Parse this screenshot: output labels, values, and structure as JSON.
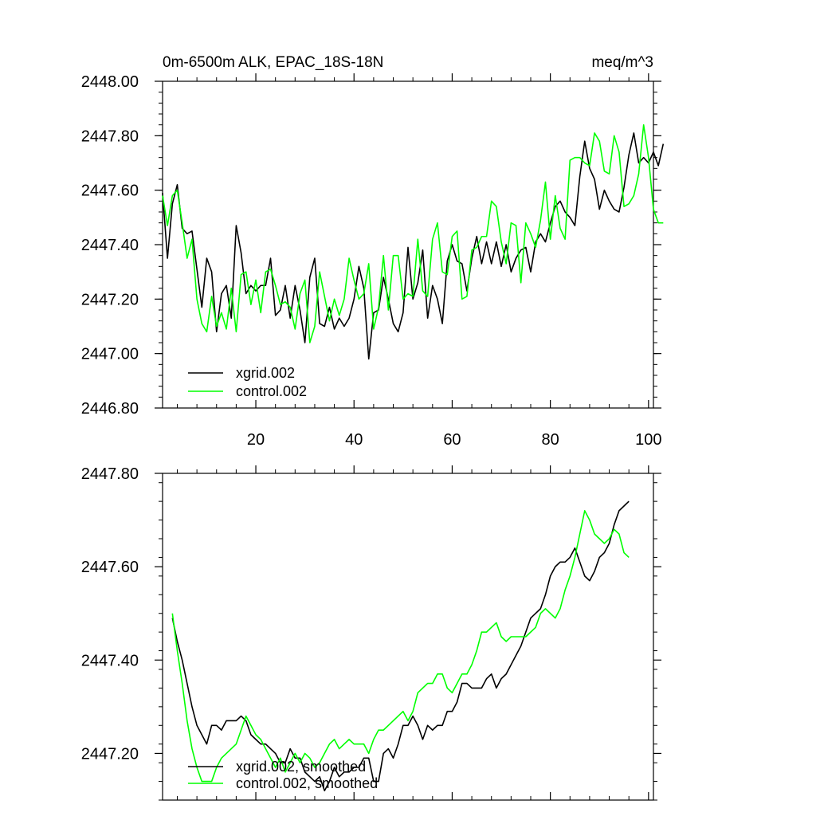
{
  "chart_data": [
    {
      "type": "line",
      "title": "0m-6500m ALK, EPAC_18S-18N",
      "units": "meq/m^3",
      "xlim": [
        1,
        101
      ],
      "ylim": [
        2446.8,
        2448.0
      ],
      "x_ticks": [
        20,
        40,
        60,
        80,
        100
      ],
      "x_tick_labels": [
        "20",
        "40",
        "60",
        "80",
        "100"
      ],
      "y_ticks": [
        2446.8,
        2447.0,
        2447.2,
        2447.4,
        2447.6,
        2447.8,
        2448.0
      ],
      "y_tick_labels": [
        "2446.80",
        "2447.00",
        "2447.20",
        "2447.40",
        "2447.60",
        "2447.80",
        "2448.00"
      ],
      "legend": "bottom-left",
      "series": [
        {
          "name": "xgrid.002",
          "color": "#000000",
          "values": [
            2447.59,
            2447.35,
            2447.55,
            2447.62,
            2447.46,
            2447.44,
            2447.45,
            2447.31,
            2447.17,
            2447.35,
            2447.3,
            2447.08,
            2447.22,
            2447.25,
            2447.13,
            2447.47,
            2447.37,
            2447.22,
            2447.25,
            2447.23,
            2447.25,
            2447.25,
            2447.35,
            2447.14,
            2447.16,
            2447.25,
            2447.13,
            2447.25,
            2447.16,
            2447.04,
            2447.28,
            2447.35,
            2447.11,
            2447.1,
            2447.17,
            2447.09,
            2447.13,
            2447.1,
            2447.13,
            2447.2,
            2447.32,
            2447.24,
            2446.98,
            2447.15,
            2447.16,
            2447.28,
            2447.2,
            2447.11,
            2447.08,
            2447.15,
            2447.39,
            2447.2,
            2447.26,
            2447.38,
            2447.13,
            2447.25,
            2447.2,
            2447.11,
            2447.34,
            2447.4,
            2447.34,
            2447.33,
            2447.23,
            2447.35,
            2447.43,
            2447.33,
            2447.41,
            2447.33,
            2447.41,
            2447.32,
            2447.4,
            2447.3,
            2447.35,
            2447.38,
            2447.39,
            2447.3,
            2447.41,
            2447.44,
            2447.41,
            2447.48,
            2447.54,
            2447.56,
            2447.52,
            2447.5,
            2447.47,
            2447.65,
            2447.78,
            2447.68,
            2447.64,
            2447.53,
            2447.6,
            2447.56,
            2447.53,
            2447.52,
            2447.61,
            2447.73,
            2447.81,
            2447.7,
            2447.72,
            2447.7,
            2447.74,
            2447.69,
            2447.77
          ]
        },
        {
          "name": "control.002",
          "color": "#00ff00",
          "values": [
            2447.58,
            2447.47,
            2447.58,
            2447.6,
            2447.48,
            2447.35,
            2447.42,
            2447.2,
            2447.11,
            2447.08,
            2447.21,
            2447.1,
            2447.15,
            2447.09,
            2447.24,
            2447.08,
            2447.29,
            2447.3,
            2447.18,
            2447.27,
            2447.15,
            2447.3,
            2447.31,
            2447.25,
            2447.18,
            2447.19,
            2447.17,
            2447.09,
            2447.22,
            2447.27,
            2447.04,
            2447.1,
            2447.3,
            2447.21,
            2447.12,
            2447.2,
            2447.14,
            2447.2,
            2447.35,
            2447.27,
            2447.2,
            2447.22,
            2447.33,
            2447.09,
            2447.17,
            2447.36,
            2447.16,
            2447.36,
            2447.36,
            2447.2,
            2447.22,
            2447.21,
            2447.42,
            2447.23,
            2447.21,
            2447.42,
            2447.48,
            2447.3,
            2447.29,
            2447.43,
            2447.45,
            2447.2,
            2447.21,
            2447.38,
            2447.39,
            2447.43,
            2447.43,
            2447.56,
            2447.54,
            2447.41,
            2447.33,
            2447.48,
            2447.47,
            2447.26,
            2447.48,
            2447.44,
            2447.39,
            2447.49,
            2447.63,
            2447.42,
            2447.58,
            2447.46,
            2447.42,
            2447.71,
            2447.72,
            2447.72,
            2447.7,
            2447.69,
            2447.81,
            2447.78,
            2447.67,
            2447.66,
            2447.8,
            2447.74,
            2447.54,
            2447.55,
            2447.58,
            2447.66,
            2447.84,
            2447.72,
            2447.53,
            2447.48,
            2447.48
          ]
        }
      ]
    },
    {
      "type": "line",
      "title": "",
      "xlim": [
        1,
        101
      ],
      "ylim": [
        2447.1,
        2447.8
      ],
      "x_ticks": [
        20,
        40,
        60,
        80,
        100
      ],
      "y_ticks": [
        2447.2,
        2447.4,
        2447.6,
        2447.8
      ],
      "y_tick_labels": [
        "2447.20",
        "2447.40",
        "2447.60",
        "2447.80"
      ],
      "legend": "bottom-left",
      "series": [
        {
          "name": "xgrid.002, smoothed",
          "color": "#000000",
          "x_start": 3,
          "values": [
            2447.49,
            2447.44,
            2447.4,
            2447.35,
            2447.3,
            2447.26,
            2447.24,
            2447.22,
            2447.26,
            2447.26,
            2447.25,
            2447.27,
            2447.27,
            2447.27,
            2447.28,
            2447.27,
            2447.24,
            2447.23,
            2447.22,
            2447.22,
            2447.21,
            2447.2,
            2447.18,
            2447.18,
            2447.21,
            2447.19,
            2447.19,
            2447.16,
            2447.15,
            2447.14,
            2447.15,
            2447.12,
            2447.14,
            2447.17,
            2447.15,
            2447.16,
            2447.16,
            2447.17,
            2447.17,
            2447.19,
            2447.19,
            2447.14,
            2447.14,
            2447.2,
            2447.21,
            2447.19,
            2447.22,
            2447.26,
            2447.26,
            2447.28,
            2447.26,
            2447.23,
            2447.26,
            2447.25,
            2447.26,
            2447.26,
            2447.29,
            2447.29,
            2447.31,
            2447.35,
            2447.35,
            2447.34,
            2447.34,
            2447.34,
            2447.36,
            2447.37,
            2447.34,
            2447.36,
            2447.37,
            2447.39,
            2447.41,
            2447.43,
            2447.46,
            2447.49,
            2447.5,
            2447.51,
            2447.54,
            2447.58,
            2447.6,
            2447.61,
            2447.61,
            2447.62,
            2447.64,
            2447.61,
            2447.58,
            2447.57,
            2447.59,
            2447.62,
            2447.63,
            2447.65,
            2447.69,
            2447.72,
            2447.73,
            2447.74
          ]
        },
        {
          "name": "control.002, smoothed",
          "color": "#00ff00",
          "x_start": 3,
          "values": [
            2447.5,
            2447.42,
            2447.35,
            2447.27,
            2447.21,
            2447.17,
            2447.14,
            2447.14,
            2447.14,
            2447.17,
            2447.19,
            2447.2,
            2447.21,
            2447.22,
            2447.25,
            2447.28,
            2447.26,
            2447.24,
            2447.23,
            2447.21,
            2447.19,
            2447.17,
            2447.19,
            2447.16,
            2447.18,
            2447.2,
            2447.18,
            2447.2,
            2447.19,
            2447.17,
            2447.18,
            2447.2,
            2447.22,
            2447.23,
            2447.21,
            2447.22,
            2447.23,
            2447.22,
            2447.22,
            2447.22,
            2447.2,
            2447.23,
            2447.25,
            2447.25,
            2447.26,
            2447.27,
            2447.28,
            2447.29,
            2447.27,
            2447.29,
            2447.33,
            2447.34,
            2447.35,
            2447.35,
            2447.37,
            2447.37,
            2447.34,
            2447.33,
            2447.35,
            2447.37,
            2447.37,
            2447.39,
            2447.42,
            2447.46,
            2447.46,
            2447.47,
            2447.48,
            2447.45,
            2447.44,
            2447.45,
            2447.45,
            2447.45,
            2447.45,
            2447.46,
            2447.47,
            2447.5,
            2447.51,
            2447.5,
            2447.49,
            2447.51,
            2447.55,
            2447.58,
            2447.62,
            2447.67,
            2447.72,
            2447.7,
            2447.67,
            2447.66,
            2447.65,
            2447.66,
            2447.68,
            2447.67,
            2447.63,
            2447.62
          ]
        }
      ]
    }
  ]
}
